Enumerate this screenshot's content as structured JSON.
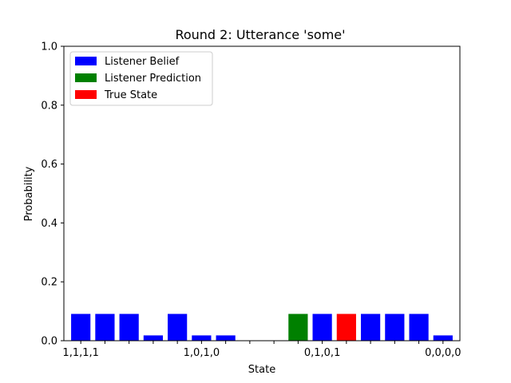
{
  "chart_data": {
    "type": "bar",
    "title": "Round 2: Utterance 'some'",
    "xlabel": "State",
    "ylabel": "Probability",
    "ylim": [
      0,
      1.0
    ],
    "yticks": [
      0.0,
      0.2,
      0.4,
      0.6,
      0.8,
      1.0
    ],
    "ytick_labels": [
      "0.0",
      "0.2",
      "0.4",
      "0.6",
      "0.8",
      "1.0"
    ],
    "grid": false,
    "legend_position": "top-left",
    "categories": [
      "1,1,1,1",
      "",
      "",
      "",
      "",
      "1,0,1,0",
      "",
      "",
      "",
      "",
      "0,1,0,1",
      "",
      "",
      "",
      "",
      "0,0,0,0"
    ],
    "xtick_labels": [
      "1,1,1,1",
      "1,0,1,0",
      "0,1,0,1",
      "0,0,0,0"
    ],
    "xtick_label_indices": [
      0,
      5,
      10,
      15
    ],
    "series": [
      {
        "name": "Listener Belief",
        "color": "#0000ff",
        "values": [
          0.091,
          0.091,
          0.091,
          0.018,
          0.091,
          0.018,
          0.018,
          null,
          null,
          null,
          0.091,
          null,
          0.091,
          0.091,
          0.091,
          0.018
        ]
      },
      {
        "name": "Listener Prediction",
        "color": "#008000",
        "values": [
          null,
          null,
          null,
          null,
          null,
          null,
          null,
          null,
          null,
          0.091,
          null,
          null,
          null,
          null,
          null,
          null
        ]
      },
      {
        "name": "True State",
        "color": "#ff0000",
        "values": [
          null,
          null,
          null,
          null,
          null,
          null,
          null,
          null,
          null,
          null,
          null,
          0.091,
          null,
          null,
          null,
          null
        ]
      }
    ]
  }
}
